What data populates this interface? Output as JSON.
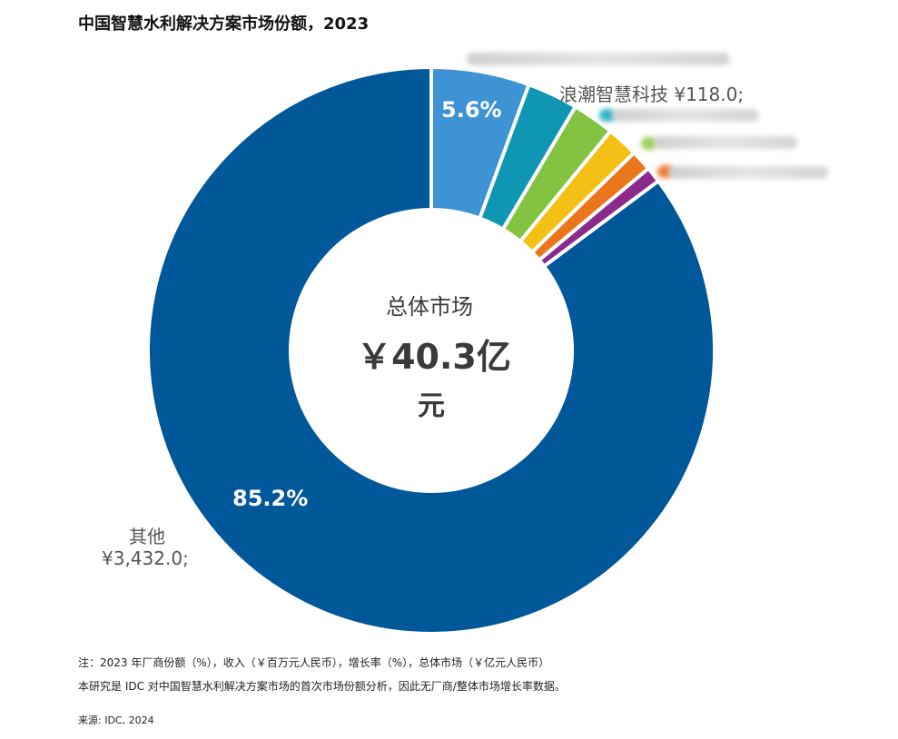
{
  "title": "中国智慧水利解决方案市场份额，2023",
  "chart_data": {
    "type": "pie",
    "subtype": "donut",
    "title": "中国智慧水利解决方案市场份额，2023",
    "center": {
      "title": "总体市场",
      "value": "￥40.3亿",
      "unit": "元"
    },
    "slices": [
      {
        "name": "",
        "share": 5.6,
        "label": "5.6%",
        "color": "#3d93d4"
      },
      {
        "name": "",
        "share": 2.9,
        "label": "",
        "color": "#0f96b3"
      },
      {
        "name": "",
        "share": 2.4,
        "label": "",
        "color": "#82c341"
      },
      {
        "name": "",
        "share": 1.8,
        "label": "",
        "color": "#f5c016"
      },
      {
        "name": "",
        "share": 1.2,
        "label": "",
        "color": "#e9761a"
      },
      {
        "name": "",
        "share": 0.9,
        "label": "",
        "color": "#8b2a8d"
      },
      {
        "name": "其他",
        "value": "¥3,432.0;",
        "share": 85.2,
        "label": "85.2%",
        "color": "#00579a"
      }
    ],
    "named_vendor_label": "浪潮智慧科技 ¥118.0;"
  },
  "footnotes": {
    "note": "注：2023 年厂商份额（%），收入（￥百万元人民币），增长率（%），总体市场（￥亿元人民币）",
    "description": "本研究是 IDC 对中国智慧水利解决方案市场的首次市场份额分析，因此无厂商/整体市场增长率数据。",
    "source": "来源: IDC, 2024"
  }
}
